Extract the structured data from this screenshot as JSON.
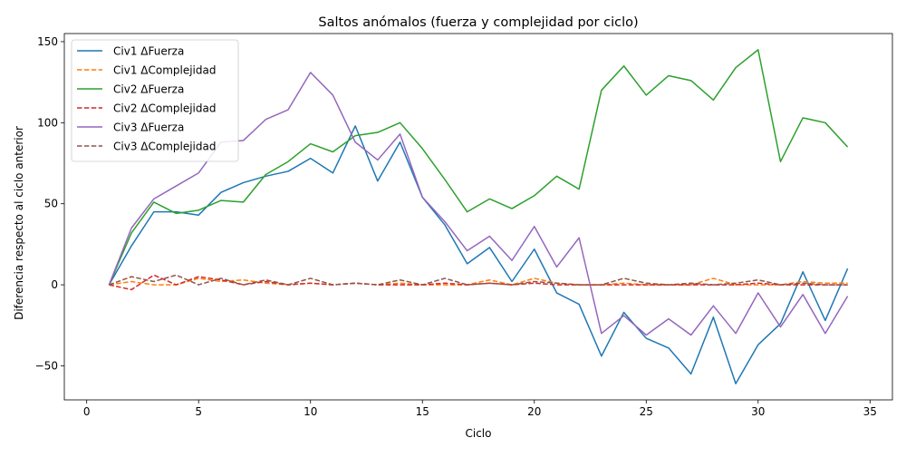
{
  "chart_data": {
    "type": "line",
    "title": "Saltos anómalos (fuerza y complejidad por ciclo)",
    "xlabel": "Ciclo",
    "ylabel": "Diferencia respecto al ciclo anterior",
    "xlim": [
      -1,
      36
    ],
    "ylim": [
      -71,
      155
    ],
    "xticks": [
      0,
      5,
      10,
      15,
      20,
      25,
      30,
      35
    ],
    "yticks": [
      -50,
      0,
      50,
      100,
      150
    ],
    "grid": false,
    "legend_position": "top-left",
    "x": [
      1,
      2,
      3,
      4,
      5,
      6,
      7,
      8,
      9,
      10,
      11,
      12,
      13,
      14,
      15,
      16,
      17,
      18,
      19,
      20,
      21,
      22,
      23,
      24,
      25,
      26,
      27,
      28,
      29,
      30,
      31,
      32,
      33,
      34
    ],
    "series": [
      {
        "name": "Civ1 ΔFuerza",
        "color": "#1f77b4",
        "dash": "solid",
        "values": [
          0,
          24,
          45,
          45,
          43,
          57,
          63,
          67,
          70,
          78,
          69,
          98,
          64,
          88,
          54,
          37,
          13,
          23,
          2,
          22,
          -5,
          -12,
          -44,
          -17,
          -33,
          -39,
          -55,
          -20,
          -61,
          -37,
          -24,
          8,
          -22,
          10
        ]
      },
      {
        "name": "Civ1 ΔComplejidad",
        "color": "#ff7f0e",
        "dash": "dashed",
        "values": [
          0,
          2,
          0,
          0,
          4,
          2,
          3,
          1,
          0,
          1,
          0,
          1,
          0,
          1,
          0,
          0,
          0,
          3,
          0,
          4,
          1,
          0,
          0,
          1,
          0,
          0,
          0,
          4,
          0,
          0,
          0,
          2,
          1,
          1
        ]
      },
      {
        "name": "Civ2 ΔFuerza",
        "color": "#2ca02c",
        "dash": "solid",
        "values": [
          0,
          32,
          51,
          44,
          46,
          52,
          51,
          68,
          76,
          87,
          82,
          92,
          94,
          100,
          84,
          65,
          45,
          53,
          47,
          55,
          67,
          59,
          120,
          135,
          117,
          129,
          126,
          114,
          134,
          145,
          76,
          103,
          100,
          85
        ]
      },
      {
        "name": "Civ2 ΔComplejidad",
        "color": "#d62728",
        "dash": "dashed",
        "values": [
          0,
          -3,
          6,
          0,
          5,
          3,
          0,
          2,
          0,
          1,
          0,
          1,
          0,
          0,
          0,
          1,
          0,
          1,
          0,
          1,
          0,
          0,
          0,
          0,
          0,
          0,
          0,
          0,
          0,
          1,
          0,
          0,
          0,
          0
        ]
      },
      {
        "name": "Civ3 ΔFuerza",
        "color": "#9467bd",
        "dash": "solid",
        "values": [
          0,
          35,
          53,
          61,
          69,
          88,
          89,
          102,
          108,
          131,
          117,
          88,
          77,
          93,
          54,
          39,
          21,
          30,
          15,
          36,
          11,
          29,
          -30,
          -19,
          -31,
          -21,
          -31,
          -13,
          -30,
          -5,
          -26,
          -6,
          -30,
          -7
        ]
      },
      {
        "name": "Civ3 ΔComplejidad",
        "color": "#8c564b",
        "dash": "dashed",
        "values": [
          0,
          5,
          2,
          6,
          0,
          4,
          0,
          3,
          0,
          4,
          0,
          1,
          0,
          3,
          0,
          4,
          0,
          1,
          0,
          2,
          1,
          0,
          0,
          4,
          1,
          0,
          1,
          0,
          1,
          3,
          0,
          1,
          0,
          0
        ]
      }
    ]
  }
}
